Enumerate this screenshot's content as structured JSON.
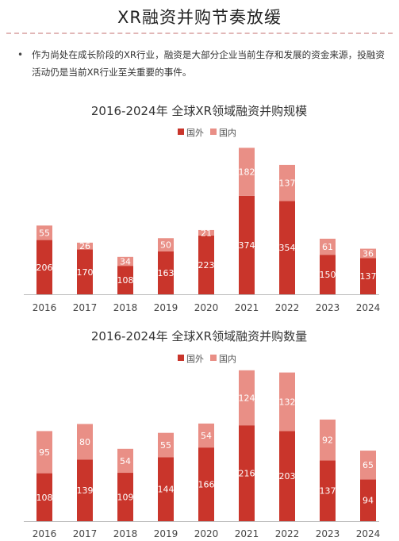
{
  "page": {
    "title": "XR融资并购节奏放缓",
    "bullet": "•",
    "intro": "作为尚处在成长阶段的XR行业，融资是大部分企业当前生存和发展的资金来源，投融资活动仍是当前XR行业至关重要的事件。"
  },
  "colors": {
    "foreign": "#c9352b",
    "domestic": "#e98f86",
    "axis": "#bbbbbb"
  },
  "chart_data": [
    {
      "type": "bar",
      "stacked": true,
      "title": "2016-2024年 全球XR领域融资并购规模",
      "categories": [
        "2016",
        "2017",
        "2018",
        "2019",
        "2020",
        "2021",
        "2022",
        "2023",
        "2024"
      ],
      "series": [
        {
          "name": "国外",
          "values": [
            206,
            170,
            108,
            163,
            223,
            374,
            354,
            150,
            137
          ]
        },
        {
          "name": "国内",
          "values": [
            55,
            26,
            34,
            50,
            21,
            182,
            137,
            61,
            36
          ]
        }
      ],
      "ylim": [
        0,
        560
      ],
      "legend": "top-center",
      "grid": false
    },
    {
      "type": "bar",
      "stacked": true,
      "title": "2016-2024年 全球XR领域融资并购数量",
      "categories": [
        "2016",
        "2017",
        "2018",
        "2019",
        "2020",
        "2021",
        "2022",
        "2023",
        "2024"
      ],
      "series": [
        {
          "name": "国外",
          "values": [
            108,
            139,
            109,
            144,
            166,
            216,
            203,
            137,
            94
          ]
        },
        {
          "name": "国内",
          "values": [
            95,
            80,
            54,
            55,
            54,
            124,
            132,
            92,
            65
          ]
        }
      ],
      "ylim": [
        0,
        345
      ],
      "legend": "top-center",
      "grid": false
    }
  ]
}
